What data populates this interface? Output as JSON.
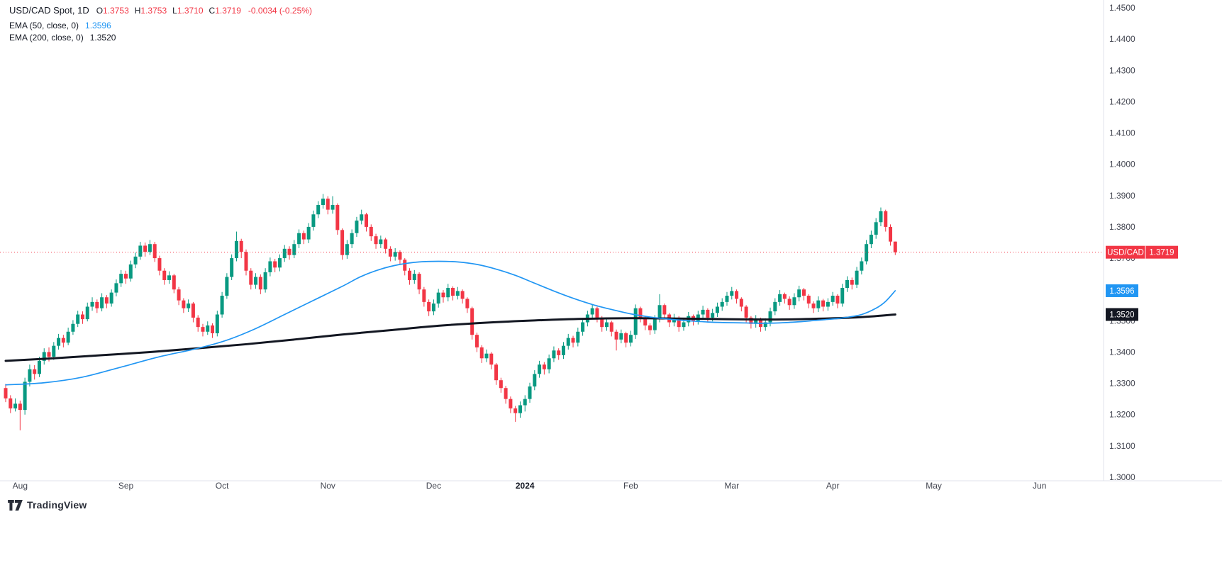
{
  "colors": {
    "up": "#089981",
    "down": "#f23645",
    "ema50": "#2196f3",
    "ema200": "#131722",
    "price_line": "#f23645",
    "axis_text": "#434651",
    "year_text": "#131722",
    "separator": "#e0e3eb",
    "badge_text": "#ffffff"
  },
  "legend": {
    "title": "USD/CAD Spot, 1D",
    "ohlc": [
      {
        "k": "O",
        "v": "1.3753"
      },
      {
        "k": "H",
        "v": "1.3753"
      },
      {
        "k": "L",
        "v": "1.3710"
      },
      {
        "k": "C",
        "v": "1.3719"
      }
    ],
    "change": "-0.0034 (-0.25%)",
    "ema50_label": "EMA (50, close, 0)",
    "ema50_value": "1.3596",
    "ema200_label": "EMA (200, close, 0)",
    "ema200_value": "1.3520"
  },
  "badges": {
    "symbol": "USD/CAD",
    "price": "1.3719",
    "ema50": "1.3596",
    "ema200": "1.3520"
  },
  "footer": {
    "brand": "TradingView"
  },
  "chart_data": {
    "type": "candlestick",
    "symbol": "USD/CAD Spot",
    "timeframe": "1D",
    "title": "USD/CAD Spot, 1D",
    "y_axis": {
      "min": 1.3,
      "max": 1.45,
      "step": 0.01,
      "decimals": 4
    },
    "price_line": 1.3719,
    "months": [
      {
        "label": "Aug",
        "i": 3
      },
      {
        "label": "Sep",
        "i": 25
      },
      {
        "label": "Oct",
        "i": 45
      },
      {
        "label": "Nov",
        "i": 67
      },
      {
        "label": "Dec",
        "i": 89
      },
      {
        "label": "2024",
        "i": 108
      },
      {
        "label": "Feb",
        "i": 130
      },
      {
        "label": "Mar",
        "i": 151
      },
      {
        "label": "Apr",
        "i": 172
      },
      {
        "label": "May",
        "i": 193
      },
      {
        "label": "Jun",
        "i": 215
      }
    ],
    "candle_format": [
      "open",
      "high",
      "low",
      "close"
    ],
    "candles": [
      [
        1.3285,
        1.3298,
        1.324,
        1.3252
      ],
      [
        1.3252,
        1.3262,
        1.3205,
        1.322
      ],
      [
        1.322,
        1.3252,
        1.321,
        1.3235
      ],
      [
        1.3235,
        1.3245,
        1.315,
        1.3215
      ],
      [
        1.3215,
        1.3318,
        1.32,
        1.3305
      ],
      [
        1.3305,
        1.336,
        1.329,
        1.3345
      ],
      [
        1.3345,
        1.3358,
        1.3312,
        1.333
      ],
      [
        1.333,
        1.3385,
        1.332,
        1.3372
      ],
      [
        1.3372,
        1.3412,
        1.336,
        1.34
      ],
      [
        1.34,
        1.3415,
        1.337,
        1.3385
      ],
      [
        1.3385,
        1.3432,
        1.3375,
        1.342
      ],
      [
        1.342,
        1.3458,
        1.3408,
        1.3445
      ],
      [
        1.3445,
        1.3455,
        1.3415,
        1.343
      ],
      [
        1.343,
        1.3478,
        1.3422,
        1.3465
      ],
      [
        1.3465,
        1.3502,
        1.3455,
        1.349
      ],
      [
        1.349,
        1.3532,
        1.348,
        1.352
      ],
      [
        1.352,
        1.353,
        1.349,
        1.3505
      ],
      [
        1.3505,
        1.3558,
        1.3498,
        1.3545
      ],
      [
        1.3545,
        1.3575,
        1.3532,
        1.356
      ],
      [
        1.356,
        1.3568,
        1.3525,
        1.354
      ],
      [
        1.354,
        1.3588,
        1.353,
        1.3575
      ],
      [
        1.3575,
        1.3582,
        1.354,
        1.3555
      ],
      [
        1.3555,
        1.36,
        1.3545,
        1.359
      ],
      [
        1.359,
        1.3632,
        1.3578,
        1.362
      ],
      [
        1.362,
        1.3662,
        1.3608,
        1.365
      ],
      [
        1.365,
        1.366,
        1.3618,
        1.3635
      ],
      [
        1.3635,
        1.3692,
        1.3625,
        1.368
      ],
      [
        1.368,
        1.3718,
        1.3668,
        1.3705
      ],
      [
        1.3705,
        1.3752,
        1.3695,
        1.374
      ],
      [
        1.374,
        1.375,
        1.3705,
        1.372
      ],
      [
        1.372,
        1.3758,
        1.371,
        1.3745
      ],
      [
        1.3745,
        1.3752,
        1.3688,
        1.37
      ],
      [
        1.37,
        1.3708,
        1.3645,
        1.366
      ],
      [
        1.366,
        1.3668,
        1.3615,
        1.363
      ],
      [
        1.363,
        1.3658,
        1.3618,
        1.3645
      ],
      [
        1.3645,
        1.365,
        1.3588,
        1.36
      ],
      [
        1.36,
        1.3608,
        1.355,
        1.3565
      ],
      [
        1.3565,
        1.3572,
        1.3525,
        1.354
      ],
      [
        1.354,
        1.3568,
        1.3528,
        1.3555
      ],
      [
        1.3555,
        1.356,
        1.3495,
        1.351
      ],
      [
        1.351,
        1.3518,
        1.3465,
        1.348
      ],
      [
        1.348,
        1.349,
        1.345,
        1.3465
      ],
      [
        1.3465,
        1.3498,
        1.3455,
        1.3485
      ],
      [
        1.3485,
        1.3492,
        1.3445,
        1.346
      ],
      [
        1.346,
        1.3532,
        1.345,
        1.352
      ],
      [
        1.352,
        1.3592,
        1.351,
        1.358
      ],
      [
        1.358,
        1.3652,
        1.357,
        1.364
      ],
      [
        1.364,
        1.3712,
        1.363,
        1.37
      ],
      [
        1.37,
        1.3785,
        1.369,
        1.3755
      ],
      [
        1.3755,
        1.3762,
        1.37,
        1.372
      ],
      [
        1.372,
        1.3728,
        1.3645,
        1.366
      ],
      [
        1.366,
        1.3668,
        1.36,
        1.3615
      ],
      [
        1.3615,
        1.3652,
        1.3602,
        1.364
      ],
      [
        1.364,
        1.3648,
        1.3585,
        1.36
      ],
      [
        1.36,
        1.3668,
        1.359,
        1.3655
      ],
      [
        1.3655,
        1.3702,
        1.3642,
        1.369
      ],
      [
        1.369,
        1.3698,
        1.3655,
        1.367
      ],
      [
        1.367,
        1.3712,
        1.3658,
        1.37
      ],
      [
        1.37,
        1.3742,
        1.3688,
        1.373
      ],
      [
        1.373,
        1.3738,
        1.3695,
        1.371
      ],
      [
        1.371,
        1.3758,
        1.37,
        1.3745
      ],
      [
        1.3745,
        1.3792,
        1.3732,
        1.378
      ],
      [
        1.378,
        1.3788,
        1.3745,
        1.376
      ],
      [
        1.376,
        1.3812,
        1.3748,
        1.38
      ],
      [
        1.38,
        1.3852,
        1.3788,
        1.384
      ],
      [
        1.384,
        1.3882,
        1.3828,
        1.387
      ],
      [
        1.387,
        1.3905,
        1.3858,
        1.389
      ],
      [
        1.389,
        1.3898,
        1.384,
        1.3855
      ],
      [
        1.3855,
        1.3898,
        1.3842,
        1.387
      ],
      [
        1.387,
        1.3875,
        1.3775,
        1.379
      ],
      [
        1.379,
        1.3795,
        1.3695,
        1.371
      ],
      [
        1.371,
        1.3758,
        1.3698,
        1.3745
      ],
      [
        1.3745,
        1.3792,
        1.3732,
        1.378
      ],
      [
        1.378,
        1.3832,
        1.3768,
        1.382
      ],
      [
        1.382,
        1.3855,
        1.3808,
        1.384
      ],
      [
        1.384,
        1.3845,
        1.3785,
        1.38
      ],
      [
        1.38,
        1.3808,
        1.3755,
        1.377
      ],
      [
        1.377,
        1.3778,
        1.373,
        1.3745
      ],
      [
        1.3745,
        1.3772,
        1.3732,
        1.376
      ],
      [
        1.376,
        1.3765,
        1.3715,
        1.373
      ],
      [
        1.373,
        1.3738,
        1.369,
        1.3705
      ],
      [
        1.3705,
        1.3732,
        1.3692,
        1.372
      ],
      [
        1.372,
        1.3725,
        1.368,
        1.3695
      ],
      [
        1.3695,
        1.37,
        1.3645,
        1.366
      ],
      [
        1.366,
        1.3668,
        1.3615,
        1.363
      ],
      [
        1.363,
        1.3662,
        1.3618,
        1.365
      ],
      [
        1.365,
        1.3655,
        1.3585,
        1.36
      ],
      [
        1.36,
        1.3608,
        1.3545,
        1.356
      ],
      [
        1.356,
        1.3568,
        1.3515,
        1.353
      ],
      [
        1.353,
        1.3568,
        1.3518,
        1.3555
      ],
      [
        1.3555,
        1.3602,
        1.3542,
        1.359
      ],
      [
        1.359,
        1.3598,
        1.3558,
        1.3575
      ],
      [
        1.3575,
        1.3618,
        1.3562,
        1.3605
      ],
      [
        1.3605,
        1.361,
        1.3565,
        1.358
      ],
      [
        1.358,
        1.3608,
        1.3568,
        1.3595
      ],
      [
        1.3595,
        1.36,
        1.3555,
        1.357
      ],
      [
        1.357,
        1.3575,
        1.3525,
        1.354
      ],
      [
        1.354,
        1.3545,
        1.344,
        1.3455
      ],
      [
        1.3455,
        1.3462,
        1.34,
        1.3415
      ],
      [
        1.3415,
        1.3422,
        1.3365,
        1.338
      ],
      [
        1.338,
        1.3408,
        1.3368,
        1.3395
      ],
      [
        1.3395,
        1.34,
        1.3345,
        1.336
      ],
      [
        1.336,
        1.3365,
        1.3295,
        1.331
      ],
      [
        1.331,
        1.3318,
        1.327,
        1.3285
      ],
      [
        1.3285,
        1.3292,
        1.3235,
        1.325
      ],
      [
        1.325,
        1.3258,
        1.3205,
        1.322
      ],
      [
        1.322,
        1.3228,
        1.3177,
        1.3205
      ],
      [
        1.3205,
        1.3242,
        1.319,
        1.323
      ],
      [
        1.323,
        1.3262,
        1.321,
        1.325
      ],
      [
        1.325,
        1.3302,
        1.3238,
        1.329
      ],
      [
        1.329,
        1.3342,
        1.3278,
        1.333
      ],
      [
        1.333,
        1.3372,
        1.3318,
        1.336
      ],
      [
        1.336,
        1.3368,
        1.3328,
        1.3345
      ],
      [
        1.3345,
        1.3392,
        1.3332,
        1.338
      ],
      [
        1.338,
        1.3418,
        1.3368,
        1.3405
      ],
      [
        1.3405,
        1.3412,
        1.3375,
        1.339
      ],
      [
        1.339,
        1.3432,
        1.3378,
        1.342
      ],
      [
        1.342,
        1.3458,
        1.3408,
        1.3445
      ],
      [
        1.3445,
        1.3452,
        1.3415,
        1.343
      ],
      [
        1.343,
        1.3478,
        1.3418,
        1.3465
      ],
      [
        1.3465,
        1.3508,
        1.3452,
        1.3495
      ],
      [
        1.3495,
        1.3532,
        1.3482,
        1.352
      ],
      [
        1.352,
        1.3552,
        1.3508,
        1.354
      ],
      [
        1.354,
        1.3545,
        1.3495,
        1.351
      ],
      [
        1.351,
        1.3515,
        1.3465,
        1.348
      ],
      [
        1.348,
        1.3508,
        1.3468,
        1.3495
      ],
      [
        1.3495,
        1.35,
        1.345,
        1.3465
      ],
      [
        1.3465,
        1.3472,
        1.3405,
        1.344
      ],
      [
        1.344,
        1.3472,
        1.3428,
        1.346
      ],
      [
        1.346,
        1.3465,
        1.3415,
        1.343
      ],
      [
        1.343,
        1.3468,
        1.3418,
        1.3455
      ],
      [
        1.3455,
        1.3552,
        1.3442,
        1.354
      ],
      [
        1.354,
        1.3545,
        1.3495,
        1.351
      ],
      [
        1.351,
        1.3515,
        1.347,
        1.3485
      ],
      [
        1.3485,
        1.3492,
        1.3455,
        1.347
      ],
      [
        1.347,
        1.3518,
        1.3458,
        1.3505
      ],
      [
        1.3505,
        1.3585,
        1.3495,
        1.355
      ],
      [
        1.355,
        1.3555,
        1.3505,
        1.352
      ],
      [
        1.352,
        1.3525,
        1.348,
        1.3495
      ],
      [
        1.3495,
        1.3522,
        1.3482,
        1.351
      ],
      [
        1.351,
        1.3515,
        1.3465,
        1.348
      ],
      [
        1.348,
        1.3508,
        1.3468,
        1.3495
      ],
      [
        1.3495,
        1.3528,
        1.3482,
        1.3515
      ],
      [
        1.3515,
        1.352,
        1.3485,
        1.35
      ],
      [
        1.35,
        1.3532,
        1.3488,
        1.352
      ],
      [
        1.352,
        1.3548,
        1.3508,
        1.3535
      ],
      [
        1.3535,
        1.354,
        1.3495,
        1.351
      ],
      [
        1.351,
        1.3538,
        1.3498,
        1.3525
      ],
      [
        1.3525,
        1.3558,
        1.3512,
        1.3545
      ],
      [
        1.3545,
        1.3572,
        1.3532,
        1.356
      ],
      [
        1.356,
        1.3592,
        1.3548,
        1.358
      ],
      [
        1.358,
        1.3608,
        1.3568,
        1.3595
      ],
      [
        1.3595,
        1.36,
        1.3555,
        1.357
      ],
      [
        1.357,
        1.3575,
        1.353,
        1.3545
      ],
      [
        1.3545,
        1.355,
        1.3495,
        1.351
      ],
      [
        1.351,
        1.3515,
        1.3475,
        1.349
      ],
      [
        1.349,
        1.3518,
        1.3478,
        1.3505
      ],
      [
        1.3505,
        1.351,
        1.3465,
        1.348
      ],
      [
        1.348,
        1.3508,
        1.3468,
        1.3495
      ],
      [
        1.3495,
        1.3542,
        1.3482,
        1.353
      ],
      [
        1.353,
        1.3572,
        1.3518,
        1.356
      ],
      [
        1.356,
        1.3598,
        1.3548,
        1.3585
      ],
      [
        1.3585,
        1.359,
        1.3555,
        1.357
      ],
      [
        1.357,
        1.3578,
        1.3535,
        1.355
      ],
      [
        1.355,
        1.3588,
        1.3538,
        1.3575
      ],
      [
        1.3575,
        1.3612,
        1.3562,
        1.36
      ],
      [
        1.36,
        1.3605,
        1.3565,
        1.358
      ],
      [
        1.358,
        1.3585,
        1.354,
        1.3555
      ],
      [
        1.3555,
        1.3562,
        1.3525,
        1.354
      ],
      [
        1.354,
        1.3578,
        1.3528,
        1.3565
      ],
      [
        1.3565,
        1.357,
        1.353,
        1.3545
      ],
      [
        1.3545,
        1.3572,
        1.3532,
        1.356
      ],
      [
        1.356,
        1.3592,
        1.3548,
        1.358
      ],
      [
        1.358,
        1.3585,
        1.354,
        1.3555
      ],
      [
        1.3555,
        1.3618,
        1.3545,
        1.3605
      ],
      [
        1.3605,
        1.3642,
        1.3592,
        1.363
      ],
      [
        1.363,
        1.3638,
        1.36,
        1.3615
      ],
      [
        1.3615,
        1.3672,
        1.3605,
        1.366
      ],
      [
        1.366,
        1.3702,
        1.3648,
        1.369
      ],
      [
        1.369,
        1.3758,
        1.368,
        1.3745
      ],
      [
        1.3745,
        1.3788,
        1.3732,
        1.3775
      ],
      [
        1.3775,
        1.3828,
        1.3762,
        1.3815
      ],
      [
        1.3815,
        1.3862,
        1.3802,
        1.385
      ],
      [
        1.385,
        1.3855,
        1.3785,
        1.38
      ],
      [
        1.38,
        1.3808,
        1.374,
        1.3753
      ],
      [
        1.3753,
        1.3753,
        1.371,
        1.3719
      ]
    ],
    "ema50_points": [
      [
        0,
        1.3295
      ],
      [
        8,
        1.3302
      ],
      [
        16,
        1.332
      ],
      [
        24,
        1.3352
      ],
      [
        32,
        1.3385
      ],
      [
        40,
        1.3412
      ],
      [
        46,
        1.3438
      ],
      [
        52,
        1.3475
      ],
      [
        58,
        1.352
      ],
      [
        64,
        1.3565
      ],
      [
        70,
        1.361
      ],
      [
        74,
        1.3642
      ],
      [
        78,
        1.3665
      ],
      [
        82,
        1.368
      ],
      [
        86,
        1.3688
      ],
      [
        90,
        1.369
      ],
      [
        94,
        1.3688
      ],
      [
        98,
        1.368
      ],
      [
        102,
        1.3665
      ],
      [
        106,
        1.3645
      ],
      [
        110,
        1.362
      ],
      [
        114,
        1.3595
      ],
      [
        118,
        1.3572
      ],
      [
        122,
        1.3552
      ],
      [
        126,
        1.3536
      ],
      [
        130,
        1.3522
      ],
      [
        134,
        1.3512
      ],
      [
        138,
        1.3505
      ],
      [
        142,
        1.35
      ],
      [
        146,
        1.3496
      ],
      [
        150,
        1.3494
      ],
      [
        154,
        1.3493
      ],
      [
        158,
        1.3492
      ],
      [
        162,
        1.3494
      ],
      [
        166,
        1.3498
      ],
      [
        170,
        1.3503
      ],
      [
        174,
        1.3509
      ],
      [
        178,
        1.352
      ],
      [
        181,
        1.354
      ],
      [
        183,
        1.3562
      ],
      [
        185,
        1.3596
      ]
    ],
    "ema200_points": [
      [
        0,
        1.3372
      ],
      [
        10,
        1.338
      ],
      [
        20,
        1.339
      ],
      [
        30,
        1.34
      ],
      [
        40,
        1.3412
      ],
      [
        50,
        1.3425
      ],
      [
        60,
        1.344
      ],
      [
        70,
        1.3456
      ],
      [
        80,
        1.347
      ],
      [
        90,
        1.3484
      ],
      [
        100,
        1.3494
      ],
      [
        110,
        1.3501
      ],
      [
        120,
        1.3506
      ],
      [
        130,
        1.3508
      ],
      [
        140,
        1.3507
      ],
      [
        150,
        1.3505
      ],
      [
        160,
        1.3504
      ],
      [
        168,
        1.3506
      ],
      [
        176,
        1.351
      ],
      [
        181,
        1.3515
      ],
      [
        185,
        1.352
      ]
    ]
  }
}
